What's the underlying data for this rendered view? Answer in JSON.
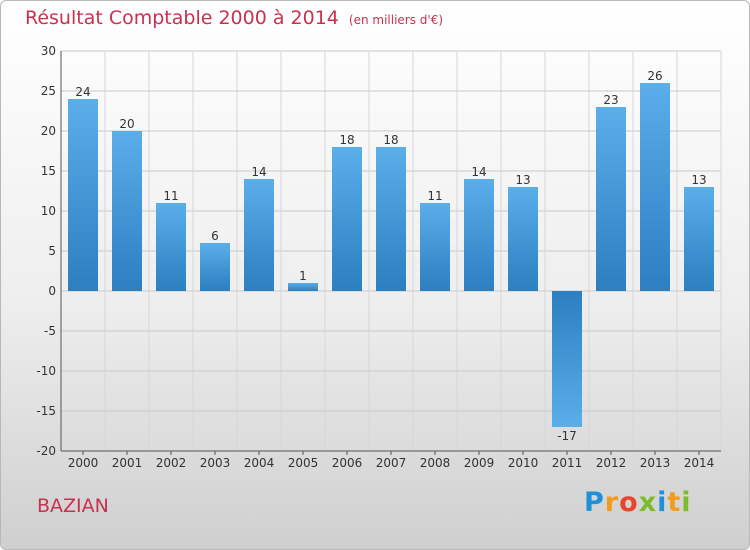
{
  "title": "Résultat Comptable 2000 à 2014",
  "subtitle": "(en milliers d'€)",
  "location": "BAZIAN",
  "logo": {
    "letters": [
      "P",
      "r",
      "o",
      "x",
      "i",
      "t",
      "i"
    ]
  },
  "colors": {
    "title": "#c8324f",
    "bar_light": "#5aaeea",
    "bar_dark": "#2c7fc0",
    "logo": [
      "#1f8fd6",
      "#f29b1d",
      "#e8452c",
      "#7cbb2a",
      "#1f8fd6",
      "#f29b1d",
      "#7cbb2a"
    ]
  },
  "chart_data": {
    "type": "bar",
    "categories": [
      "2000",
      "2001",
      "2002",
      "2003",
      "2004",
      "2005",
      "2006",
      "2007",
      "2008",
      "2009",
      "2010",
      "2011",
      "2012",
      "2013",
      "2014"
    ],
    "values": [
      24,
      20,
      11,
      6,
      14,
      1,
      18,
      18,
      11,
      14,
      13,
      -17,
      23,
      26,
      13
    ],
    "data_labels": [
      "24",
      "20",
      "11",
      "6",
      "14",
      "1",
      "18",
      "18",
      "11",
      "14",
      "13",
      "-17",
      "23",
      "26",
      "13"
    ],
    "yticks": [
      30,
      25,
      20,
      15,
      10,
      5,
      0,
      -5,
      -10,
      -15,
      -20
    ],
    "ytick_labels": [
      "30",
      "25",
      "20",
      "15",
      "10",
      "5",
      "0",
      "-5",
      "-10",
      "-15",
      "-20"
    ],
    "ylim": [
      -20,
      30
    ],
    "grid": true,
    "legend": "none"
  }
}
